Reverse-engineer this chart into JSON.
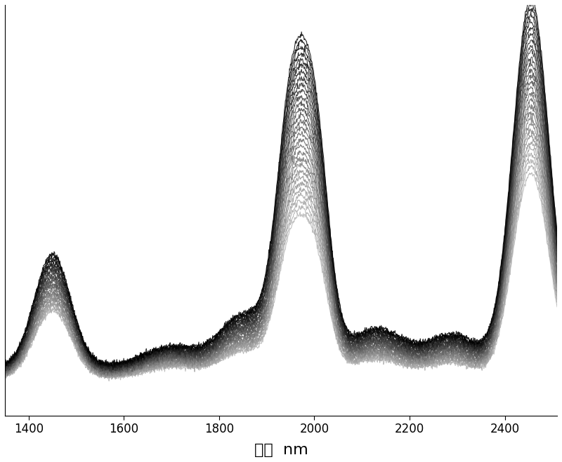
{
  "xlabel": "波长  nm",
  "xlabel_fontsize": 16,
  "xlim": [
    1350,
    2510
  ],
  "ylim": [
    -0.05,
    1.05
  ],
  "xticks": [
    1400,
    1600,
    1800,
    2000,
    2200,
    2400
  ],
  "n_spectra": 30,
  "background_color": "#ffffff",
  "linewidth": 0.8,
  "figsize": [
    8.0,
    6.59
  ],
  "dpi": 100,
  "tick_fontsize": 12
}
